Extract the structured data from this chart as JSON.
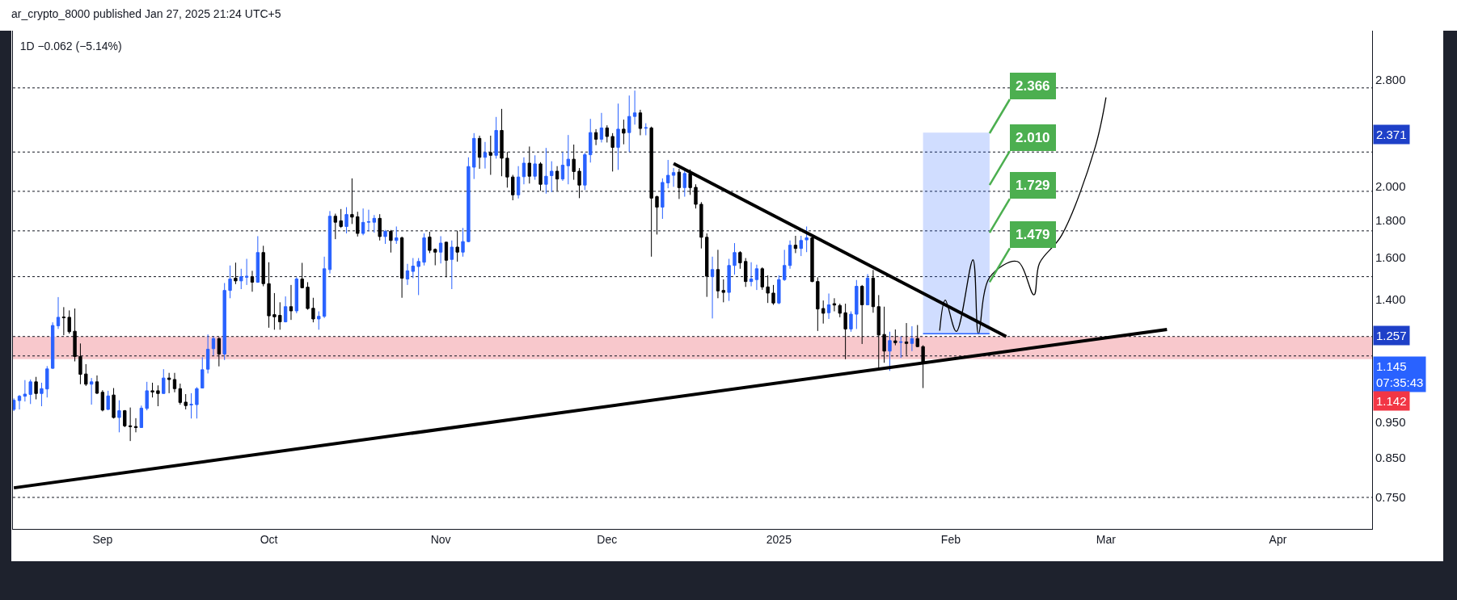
{
  "chart_data": {
    "type": "candlestick",
    "title": "1D −0.062 (−5.14%)",
    "subtitle": "ar_crypto_8000 published Jan 27, 2025 21:24 UTC+5",
    "x": [
      "2024-08-16",
      "2024-08-17",
      "2024-08-18",
      "2024-08-19",
      "2024-08-20",
      "2024-08-21",
      "2024-08-22",
      "2024-08-23",
      "2024-08-24",
      "2024-08-25",
      "2024-08-26",
      "2024-08-27",
      "2024-08-28",
      "2024-08-29",
      "2024-08-30",
      "2024-08-31",
      "2024-09-01",
      "2024-09-02",
      "2024-09-03",
      "2024-09-04",
      "2024-09-05",
      "2024-09-06",
      "2024-09-07",
      "2024-09-08",
      "2024-09-09",
      "2024-09-10",
      "2024-09-11",
      "2024-09-12",
      "2024-09-13",
      "2024-09-14",
      "2024-09-15",
      "2024-09-16",
      "2024-09-17",
      "2024-09-18",
      "2024-09-19",
      "2024-09-20",
      "2024-09-21",
      "2024-09-22",
      "2024-09-23",
      "2024-09-24",
      "2024-09-25",
      "2024-09-26",
      "2024-09-27",
      "2024-09-28",
      "2024-09-29",
      "2024-09-30",
      "2024-10-01",
      "2024-10-02",
      "2024-10-03",
      "2024-10-04",
      "2024-10-05",
      "2024-10-06",
      "2024-10-07",
      "2024-10-08",
      "2024-10-09",
      "2024-10-10",
      "2024-10-11",
      "2024-10-12",
      "2024-10-13",
      "2024-10-14",
      "2024-10-15",
      "2024-10-16",
      "2024-10-17",
      "2024-10-18",
      "2024-10-19",
      "2024-10-20",
      "2024-10-21",
      "2024-10-22",
      "2024-10-23",
      "2024-10-24",
      "2024-10-25",
      "2024-10-26",
      "2024-10-27",
      "2024-10-28",
      "2024-10-29",
      "2024-10-30",
      "2024-10-31",
      "2024-11-01",
      "2024-11-02",
      "2024-11-03",
      "2024-11-04",
      "2024-11-05",
      "2024-11-06",
      "2024-11-07",
      "2024-11-08",
      "2024-11-09",
      "2024-11-10",
      "2024-11-11",
      "2024-11-12",
      "2024-11-13",
      "2024-11-14",
      "2024-11-15",
      "2024-11-16",
      "2024-11-17",
      "2024-11-18",
      "2024-11-19",
      "2024-11-20",
      "2024-11-21",
      "2024-11-22",
      "2024-11-23",
      "2024-11-24",
      "2024-11-25",
      "2024-11-26",
      "2024-11-27",
      "2024-11-28",
      "2024-11-29",
      "2024-11-30",
      "2024-12-01",
      "2024-12-02",
      "2024-12-03",
      "2024-12-04",
      "2024-12-05",
      "2024-12-06",
      "2024-12-07",
      "2024-12-08",
      "2024-12-09",
      "2024-12-10",
      "2024-12-11",
      "2024-12-12",
      "2024-12-13",
      "2024-12-14",
      "2024-12-15",
      "2024-12-16",
      "2024-12-17",
      "2024-12-18",
      "2024-12-19",
      "2024-12-20",
      "2024-12-21",
      "2024-12-22",
      "2024-12-23",
      "2024-12-24",
      "2024-12-25",
      "2024-12-26",
      "2024-12-27",
      "2024-12-28",
      "2024-12-29",
      "2024-12-30",
      "2024-12-31",
      "2025-01-01",
      "2025-01-02",
      "2025-01-03",
      "2025-01-04",
      "2025-01-05",
      "2025-01-06",
      "2025-01-07",
      "2025-01-08",
      "2025-01-09",
      "2025-01-10",
      "2025-01-11",
      "2025-01-12",
      "2025-01-13",
      "2025-01-14",
      "2025-01-15",
      "2025-01-16",
      "2025-01-17",
      "2025-01-18",
      "2025-01-19",
      "2025-01-20",
      "2025-01-21",
      "2025-01-22",
      "2025-01-23",
      "2025-01-24",
      "2025-01-25",
      "2025-01-26",
      "2025-01-27"
    ],
    "ohlc": [
      [
        0.99,
        1.025,
        0.985,
        1.019
      ],
      [
        1.018,
        1.036,
        0.99,
        1.032
      ],
      [
        1.032,
        1.086,
        1.015,
        1.039
      ],
      [
        1.038,
        1.088,
        1.007,
        1.08
      ],
      [
        1.08,
        1.097,
        1.022,
        1.041
      ],
      [
        1.041,
        1.077,
        1.0,
        1.057
      ],
      [
        1.056,
        1.135,
        1.028,
        1.125
      ],
      [
        1.127,
        1.303,
        1.125,
        1.29
      ],
      [
        1.289,
        1.411,
        1.276,
        1.324
      ],
      [
        1.325,
        1.367,
        1.251,
        1.322
      ],
      [
        1.324,
        1.353,
        1.257,
        1.265
      ],
      [
        1.267,
        1.361,
        1.152,
        1.17
      ],
      [
        1.17,
        1.219,
        1.072,
        1.106
      ],
      [
        1.107,
        1.142,
        1.066,
        1.072
      ],
      [
        1.072,
        1.093,
        1.005,
        1.08
      ],
      [
        1.08,
        1.102,
        1.039,
        1.042
      ],
      [
        1.045,
        1.052,
        0.984,
        0.988
      ],
      [
        0.99,
        1.05,
        0.988,
        1.033
      ],
      [
        1.036,
        1.059,
        0.962,
        0.965
      ],
      [
        0.965,
        1.019,
        0.921,
        0.986
      ],
      [
        0.986,
        0.988,
        0.936,
        0.94
      ],
      [
        0.94,
        0.996,
        0.896,
        0.938
      ],
      [
        0.938,
        0.963,
        0.921,
        0.935
      ],
      [
        0.935,
        1.002,
        0.935,
        0.994
      ],
      [
        0.993,
        1.08,
        0.987,
        1.05
      ],
      [
        1.05,
        1.077,
        1.028,
        1.046
      ],
      [
        1.05,
        1.068,
        1.0,
        1.041
      ],
      [
        1.041,
        1.124,
        1.04,
        1.093
      ],
      [
        1.093,
        1.111,
        1.042,
        1.088
      ],
      [
        1.088,
        1.111,
        1.045,
        1.057
      ],
      [
        1.057,
        1.074,
        1.005,
        1.012
      ],
      [
        1.013,
        1.039,
        0.99,
        1.002
      ],
      [
        1.004,
        1.042,
        0.962,
        1.006
      ],
      [
        1.005,
        1.062,
        0.962,
        1.057
      ],
      [
        1.059,
        1.167,
        1.059,
        1.122
      ],
      [
        1.124,
        1.254,
        1.109,
        1.197
      ],
      [
        1.199,
        1.246,
        1.174,
        1.238
      ],
      [
        1.238,
        1.243,
        1.134,
        1.179
      ],
      [
        1.179,
        1.475,
        1.157,
        1.441
      ],
      [
        1.441,
        1.559,
        1.406,
        1.494
      ],
      [
        1.498,
        1.573,
        1.47,
        1.485
      ],
      [
        1.485,
        1.543,
        1.447,
        1.505
      ],
      [
        1.502,
        1.592,
        1.466,
        1.507
      ],
      [
        1.505,
        1.533,
        1.435,
        1.479
      ],
      [
        1.479,
        1.71,
        1.476,
        1.624
      ],
      [
        1.624,
        1.659,
        1.46,
        1.472
      ],
      [
        1.472,
        1.575,
        1.281,
        1.33
      ],
      [
        1.335,
        1.429,
        1.273,
        1.326
      ],
      [
        1.332,
        1.388,
        1.273,
        1.305
      ],
      [
        1.305,
        1.414,
        1.303,
        1.369
      ],
      [
        1.369,
        1.466,
        1.313,
        1.351
      ],
      [
        1.351,
        1.502,
        1.341,
        1.494
      ],
      [
        1.494,
        1.572,
        1.451,
        1.453
      ],
      [
        1.456,
        1.479,
        1.356,
        1.361
      ],
      [
        1.362,
        1.408,
        1.303,
        1.317
      ],
      [
        1.317,
        1.349,
        1.273,
        1.328
      ],
      [
        1.328,
        1.603,
        1.321,
        1.543
      ],
      [
        1.539,
        1.851,
        1.52,
        1.821
      ],
      [
        1.821,
        1.836,
        1.694,
        1.787
      ],
      [
        1.795,
        1.863,
        1.755,
        1.763
      ],
      [
        1.763,
        1.874,
        1.725,
        1.831
      ],
      [
        1.831,
        2.052,
        1.777,
        1.816
      ],
      [
        1.818,
        1.847,
        1.708,
        1.725
      ],
      [
        1.725,
        1.866,
        1.715,
        1.786
      ],
      [
        1.787,
        1.859,
        1.737,
        1.79
      ],
      [
        1.787,
        1.828,
        1.729,
        1.809
      ],
      [
        1.809,
        1.833,
        1.687,
        1.708
      ],
      [
        1.708,
        1.744,
        1.669,
        1.736
      ],
      [
        1.736,
        1.744,
        1.624,
        1.687
      ],
      [
        1.687,
        1.763,
        1.669,
        1.701
      ],
      [
        1.701,
        1.708,
        1.408,
        1.498
      ],
      [
        1.494,
        1.567,
        1.466,
        1.533
      ],
      [
        1.53,
        1.596,
        1.498,
        1.556
      ],
      [
        1.554,
        1.596,
        1.42,
        1.579
      ],
      [
        1.575,
        1.725,
        1.559,
        1.701
      ],
      [
        1.705,
        1.734,
        1.621,
        1.635
      ],
      [
        1.64,
        1.645,
        1.56,
        1.626
      ],
      [
        1.626,
        1.71,
        1.569,
        1.673
      ],
      [
        1.678,
        1.681,
        1.502,
        1.585
      ],
      [
        1.589,
        1.687,
        1.447,
        1.652
      ],
      [
        1.652,
        1.74,
        1.578,
        1.626
      ],
      [
        1.626,
        1.755,
        1.603,
        1.681
      ],
      [
        1.681,
        2.193,
        1.678,
        2.13
      ],
      [
        2.126,
        2.367,
        2.048,
        2.328
      ],
      [
        2.328,
        2.348,
        2.115,
        2.193
      ],
      [
        2.193,
        2.302,
        2.117,
        2.226
      ],
      [
        2.226,
        2.348,
        2.075,
        2.207
      ],
      [
        2.207,
        2.491,
        2.184,
        2.387
      ],
      [
        2.387,
        2.555,
        2.066,
        2.187
      ],
      [
        2.187,
        2.23,
        1.993,
        2.061
      ],
      [
        2.061,
        2.075,
        1.915,
        1.948
      ],
      [
        1.948,
        2.133,
        1.926,
        2.061
      ],
      [
        2.063,
        2.193,
        2.014,
        2.153
      ],
      [
        2.153,
        2.269,
        2.019,
        2.066
      ],
      [
        2.066,
        2.207,
        2.043,
        2.148
      ],
      [
        2.148,
        2.16,
        1.973,
        2.014
      ],
      [
        2.014,
        2.259,
        1.956,
        2.066
      ],
      [
        2.07,
        2.166,
        1.965,
        2.099
      ],
      [
        2.099,
        2.133,
        1.973,
        2.048
      ],
      [
        2.048,
        2.23,
        2.036,
        2.139
      ],
      [
        2.135,
        2.353,
        2.014,
        2.18
      ],
      [
        2.18,
        2.283,
        2.043,
        2.097
      ],
      [
        2.099,
        2.12,
        1.928,
        2.009
      ],
      [
        2.009,
        2.224,
        1.978,
        2.211
      ],
      [
        2.211,
        2.476,
        2.157,
        2.371
      ],
      [
        2.371,
        2.397,
        2.279,
        2.322
      ],
      [
        2.322,
        2.523,
        2.298,
        2.406
      ],
      [
        2.406,
        2.426,
        2.298,
        2.342
      ],
      [
        2.342,
        2.367,
        2.097,
        2.263
      ],
      [
        2.263,
        2.598,
        2.108,
        2.397
      ],
      [
        2.397,
        2.47,
        2.285,
        2.367
      ],
      [
        2.371,
        2.665,
        2.23,
        2.495
      ],
      [
        2.495,
        2.707,
        2.431,
        2.523
      ],
      [
        2.523,
        2.548,
        2.351,
        2.402
      ],
      [
        2.404,
        2.442,
        2.351,
        2.408
      ],
      [
        2.406,
        2.416,
        1.603,
        1.928
      ],
      [
        1.937,
        1.943,
        1.719,
        1.874
      ],
      [
        1.874,
        2.052,
        1.806,
        2.026
      ],
      [
        2.023,
        2.175,
        1.989,
        2.072
      ],
      [
        2.072,
        2.12,
        1.998,
        2.09
      ],
      [
        2.093,
        2.115,
        1.923,
        1.993
      ],
      [
        1.993,
        2.108,
        1.937,
        2.084
      ],
      [
        2.084,
        2.111,
        1.948,
        1.993
      ],
      [
        1.995,
        2.014,
        1.866,
        1.891
      ],
      [
        1.891,
        1.904,
        1.645,
        1.704
      ],
      [
        1.704,
        1.725,
        1.412,
        1.507
      ],
      [
        1.505,
        1.603,
        1.319,
        1.539
      ],
      [
        1.539,
        1.638,
        1.406,
        1.439
      ],
      [
        1.441,
        1.492,
        1.388,
        1.432
      ],
      [
        1.432,
        1.592,
        1.394,
        1.559
      ],
      [
        1.559,
        1.673,
        1.515,
        1.624
      ],
      [
        1.624,
        1.631,
        1.543,
        1.572
      ],
      [
        1.579,
        1.596,
        1.457,
        1.482
      ],
      [
        1.482,
        1.575,
        1.46,
        1.494
      ],
      [
        1.491,
        1.563,
        1.443,
        1.543
      ],
      [
        1.543,
        1.55,
        1.444,
        1.457
      ],
      [
        1.457,
        1.511,
        1.385,
        1.429
      ],
      [
        1.429,
        1.466,
        1.377,
        1.385
      ],
      [
        1.385,
        1.511,
        1.38,
        1.491
      ],
      [
        1.491,
        1.638,
        1.485,
        1.559
      ],
      [
        1.559,
        1.687,
        1.543,
        1.662
      ],
      [
        1.662,
        1.712,
        1.621,
        1.645
      ],
      [
        1.645,
        1.712,
        1.606,
        1.687
      ],
      [
        1.69,
        1.763,
        1.626,
        1.701
      ],
      [
        1.701,
        1.705,
        1.479,
        1.482
      ],
      [
        1.482,
        1.502,
        1.268,
        1.359
      ],
      [
        1.361,
        1.396,
        1.298,
        1.341
      ],
      [
        1.343,
        1.427,
        1.317,
        1.377
      ],
      [
        1.382,
        1.406,
        1.349,
        1.376
      ],
      [
        1.374,
        1.382,
        1.324,
        1.341
      ],
      [
        1.343,
        1.382,
        1.16,
        1.276
      ],
      [
        1.276,
        1.349,
        1.265,
        1.337
      ],
      [
        1.337,
        1.489,
        1.276,
        1.46
      ],
      [
        1.46,
        1.466,
        1.217,
        1.377
      ],
      [
        1.377,
        1.517,
        1.375,
        1.498
      ],
      [
        1.498,
        1.537,
        1.343,
        1.369
      ],
      [
        1.369,
        1.42,
        1.127,
        1.252
      ],
      [
        1.254,
        1.369,
        1.147,
        1.19
      ],
      [
        1.19,
        1.265,
        1.118,
        1.23
      ],
      [
        1.229,
        1.274,
        1.212,
        1.222
      ],
      [
        1.223,
        1.246,
        1.165,
        1.225
      ],
      [
        1.225,
        1.3,
        1.175,
        1.219
      ],
      [
        1.219,
        1.287,
        1.19,
        1.238
      ],
      [
        1.238,
        1.292,
        1.205,
        1.207
      ],
      [
        1.207,
        1.212,
        1.059,
        1.145
      ]
    ],
    "colors": [
      "#2962ff",
      "#2962ff",
      "#2962ff",
      "#2962ff",
      "#000000",
      "#2962ff",
      "#2962ff",
      "#2962ff",
      "#2962ff",
      "#000000",
      "#000000",
      "#000000",
      "#000000",
      "#000000",
      "#2962ff",
      "#000000",
      "#000000",
      "#2962ff",
      "#000000",
      "#2962ff",
      "#000000",
      "#000000",
      "#000000",
      "#2962ff",
      "#2962ff",
      "#000000",
      "#000000",
      "#2962ff",
      "#000000",
      "#000000",
      "#000000",
      "#000000",
      "#2962ff",
      "#2962ff",
      "#2962ff",
      "#2962ff",
      "#2962ff",
      "#000000",
      "#2962ff",
      "#2962ff",
      "#000000",
      "#2962ff",
      "#2962ff",
      "#000000",
      "#2962ff",
      "#000000",
      "#000000",
      "#000000",
      "#000000",
      "#2962ff",
      "#000000",
      "#2962ff",
      "#000000",
      "#000000",
      "#000000",
      "#2962ff",
      "#2962ff",
      "#2962ff",
      "#000000",
      "#000000",
      "#2962ff",
      "#000000",
      "#000000",
      "#2962ff",
      "#2962ff",
      "#2962ff",
      "#000000",
      "#2962ff",
      "#000000",
      "#2962ff",
      "#000000",
      "#2962ff",
      "#2962ff",
      "#2962ff",
      "#2962ff",
      "#000000",
      "#000000",
      "#2962ff",
      "#000000",
      "#2962ff",
      "#000000",
      "#2962ff",
      "#2962ff",
      "#2962ff",
      "#000000",
      "#2962ff",
      "#000000",
      "#2962ff",
      "#000000",
      "#000000",
      "#000000",
      "#2962ff",
      "#2962ff",
      "#000000",
      "#2962ff",
      "#000000",
      "#2962ff",
      "#2962ff",
      "#000000",
      "#2962ff",
      "#2962ff",
      "#000000",
      "#000000",
      "#2962ff",
      "#2962ff",
      "#000000",
      "#2962ff",
      "#000000",
      "#000000",
      "#2962ff",
      "#000000",
      "#2962ff",
      "#2962ff",
      "#000000",
      "#2962ff",
      "#000000",
      "#000000",
      "#2962ff",
      "#2962ff",
      "#2962ff",
      "#000000",
      "#2962ff",
      "#000000",
      "#000000",
      "#000000",
      "#000000",
      "#2962ff",
      "#000000",
      "#000000",
      "#2962ff",
      "#2962ff",
      "#000000",
      "#000000",
      "#2962ff",
      "#2962ff",
      "#000000",
      "#000000",
      "#000000",
      "#2962ff",
      "#2962ff",
      "#2962ff",
      "#000000",
      "#2962ff",
      "#2962ff",
      "#000000",
      "#000000",
      "#000000",
      "#2962ff",
      "#000000",
      "#000000",
      "#000000",
      "#2962ff",
      "#2962ff",
      "#000000",
      "#2962ff",
      "#000000",
      "#000000",
      "#000000",
      "#2962ff",
      "#000000",
      "#2962ff",
      "#000000",
      "#2962ff",
      "#000000",
      "#000000"
    ],
    "series": [
      {
        "type": "line",
        "x": [
          "2024-08-16",
          "2025-03-12"
        ],
        "values": [
          0.773,
          1.274
        ],
        "color": "#000000"
      },
      {
        "type": "line",
        "x": [
          "2024-12-13",
          "2025-02-11"
        ],
        "values": [
          2.15,
          1.246
        ],
        "color": "#000000"
      },
      {
        "type": "line",
        "x": [
          "2025-01-30",
          "2025-01-31",
          "2025-02-02",
          "2025-02-05",
          "2025-02-06",
          "2025-02-08",
          "2025-02-13",
          "2025-02-16",
          "2025-02-17",
          "2025-02-21",
          "2025-02-27",
          "2025-03-01"
        ],
        "values": [
          1.269,
          1.398,
          1.266,
          1.587,
          1.256,
          1.501,
          1.579,
          1.421,
          1.57,
          1.715,
          2.258,
          2.65
        ],
        "color": "#000000"
      },
      {
        "type": "line",
        "x": [
          "2025-01-27",
          "2025-02-08"
        ],
        "values": [
          1.257,
          1.257
        ],
        "lower": [
          1.257,
          1.257
        ],
        "upper": [
          2.371,
          2.371
        ],
        "color": "#2962ff"
      }
    ],
    "ref_lines": [
      {
        "axis": "y",
        "value": 2.73,
        "color": "#131722",
        "line_style": "dotted"
      },
      {
        "axis": "y",
        "value": 2.23,
        "color": "#131722",
        "line_style": "dotted"
      },
      {
        "axis": "y",
        "value": 1.97,
        "color": "#131722",
        "line_style": "dotted"
      },
      {
        "axis": "y",
        "value": 1.739,
        "color": "#131722",
        "line_style": "dotted"
      },
      {
        "axis": "y",
        "value": 1.505,
        "color": "#131722",
        "line_style": "dotted"
      },
      {
        "axis": "y",
        "value": 1.246,
        "color": "#131722",
        "line_style": "dotted"
      },
      {
        "axis": "y",
        "value": 1.172,
        "color": "#131722",
        "line_style": "dotted"
      },
      {
        "axis": "y",
        "value": 0.75,
        "color": "#131722",
        "line_style": "dotted"
      }
    ],
    "bands": [
      {
        "axis": "y",
        "from": 1.16,
        "to": 1.246,
        "color": "#f8c8cc"
      }
    ],
    "annotations": [
      {
        "text": "2.366",
        "x": "2025-02-08",
        "y": 2.366
      },
      {
        "text": "2.010",
        "x": "2025-02-08",
        "y": 2.01
      },
      {
        "text": "1.729",
        "x": "2025-02-08",
        "y": 1.729
      },
      {
        "text": "1.479",
        "x": "2025-02-08",
        "y": 1.479
      },
      "2.371",
      "1.257",
      "1.145\n07:35:43",
      "1.142"
    ],
    "xlim": [
      "2024-08-15T20:00",
      "2025-04-18"
    ],
    "xticks": [
      {
        "value": "2024-09-01",
        "label": "Sep"
      },
      {
        "value": "2024-10-01",
        "label": "Oct"
      },
      {
        "value": "2024-11-01",
        "label": "Nov"
      },
      {
        "value": "2024-12-01",
        "label": "Dec"
      },
      {
        "value": "2025-01-01",
        "label": "2025"
      },
      {
        "value": "2025-02-01",
        "label": "Feb"
      },
      {
        "value": "2025-03-01",
        "label": "Mar"
      },
      {
        "value": "2025-04-01",
        "label": "Apr"
      }
    ],
    "ylim": [
      0.679,
      3.27
    ],
    "yticks": [
      {
        "value": 2.8,
        "label": "2.800"
      },
      {
        "value": 2.0,
        "label": "2.000"
      },
      {
        "value": 1.8,
        "label": "1.800"
      },
      {
        "value": 1.6,
        "label": "1.600"
      },
      {
        "value": 1.4,
        "label": "1.400"
      },
      {
        "value": 0.95,
        "label": "0.950"
      },
      {
        "value": 0.85,
        "label": "0.850"
      },
      {
        "value": 0.75,
        "label": "0.750"
      }
    ],
    "log": "y"
  }
}
